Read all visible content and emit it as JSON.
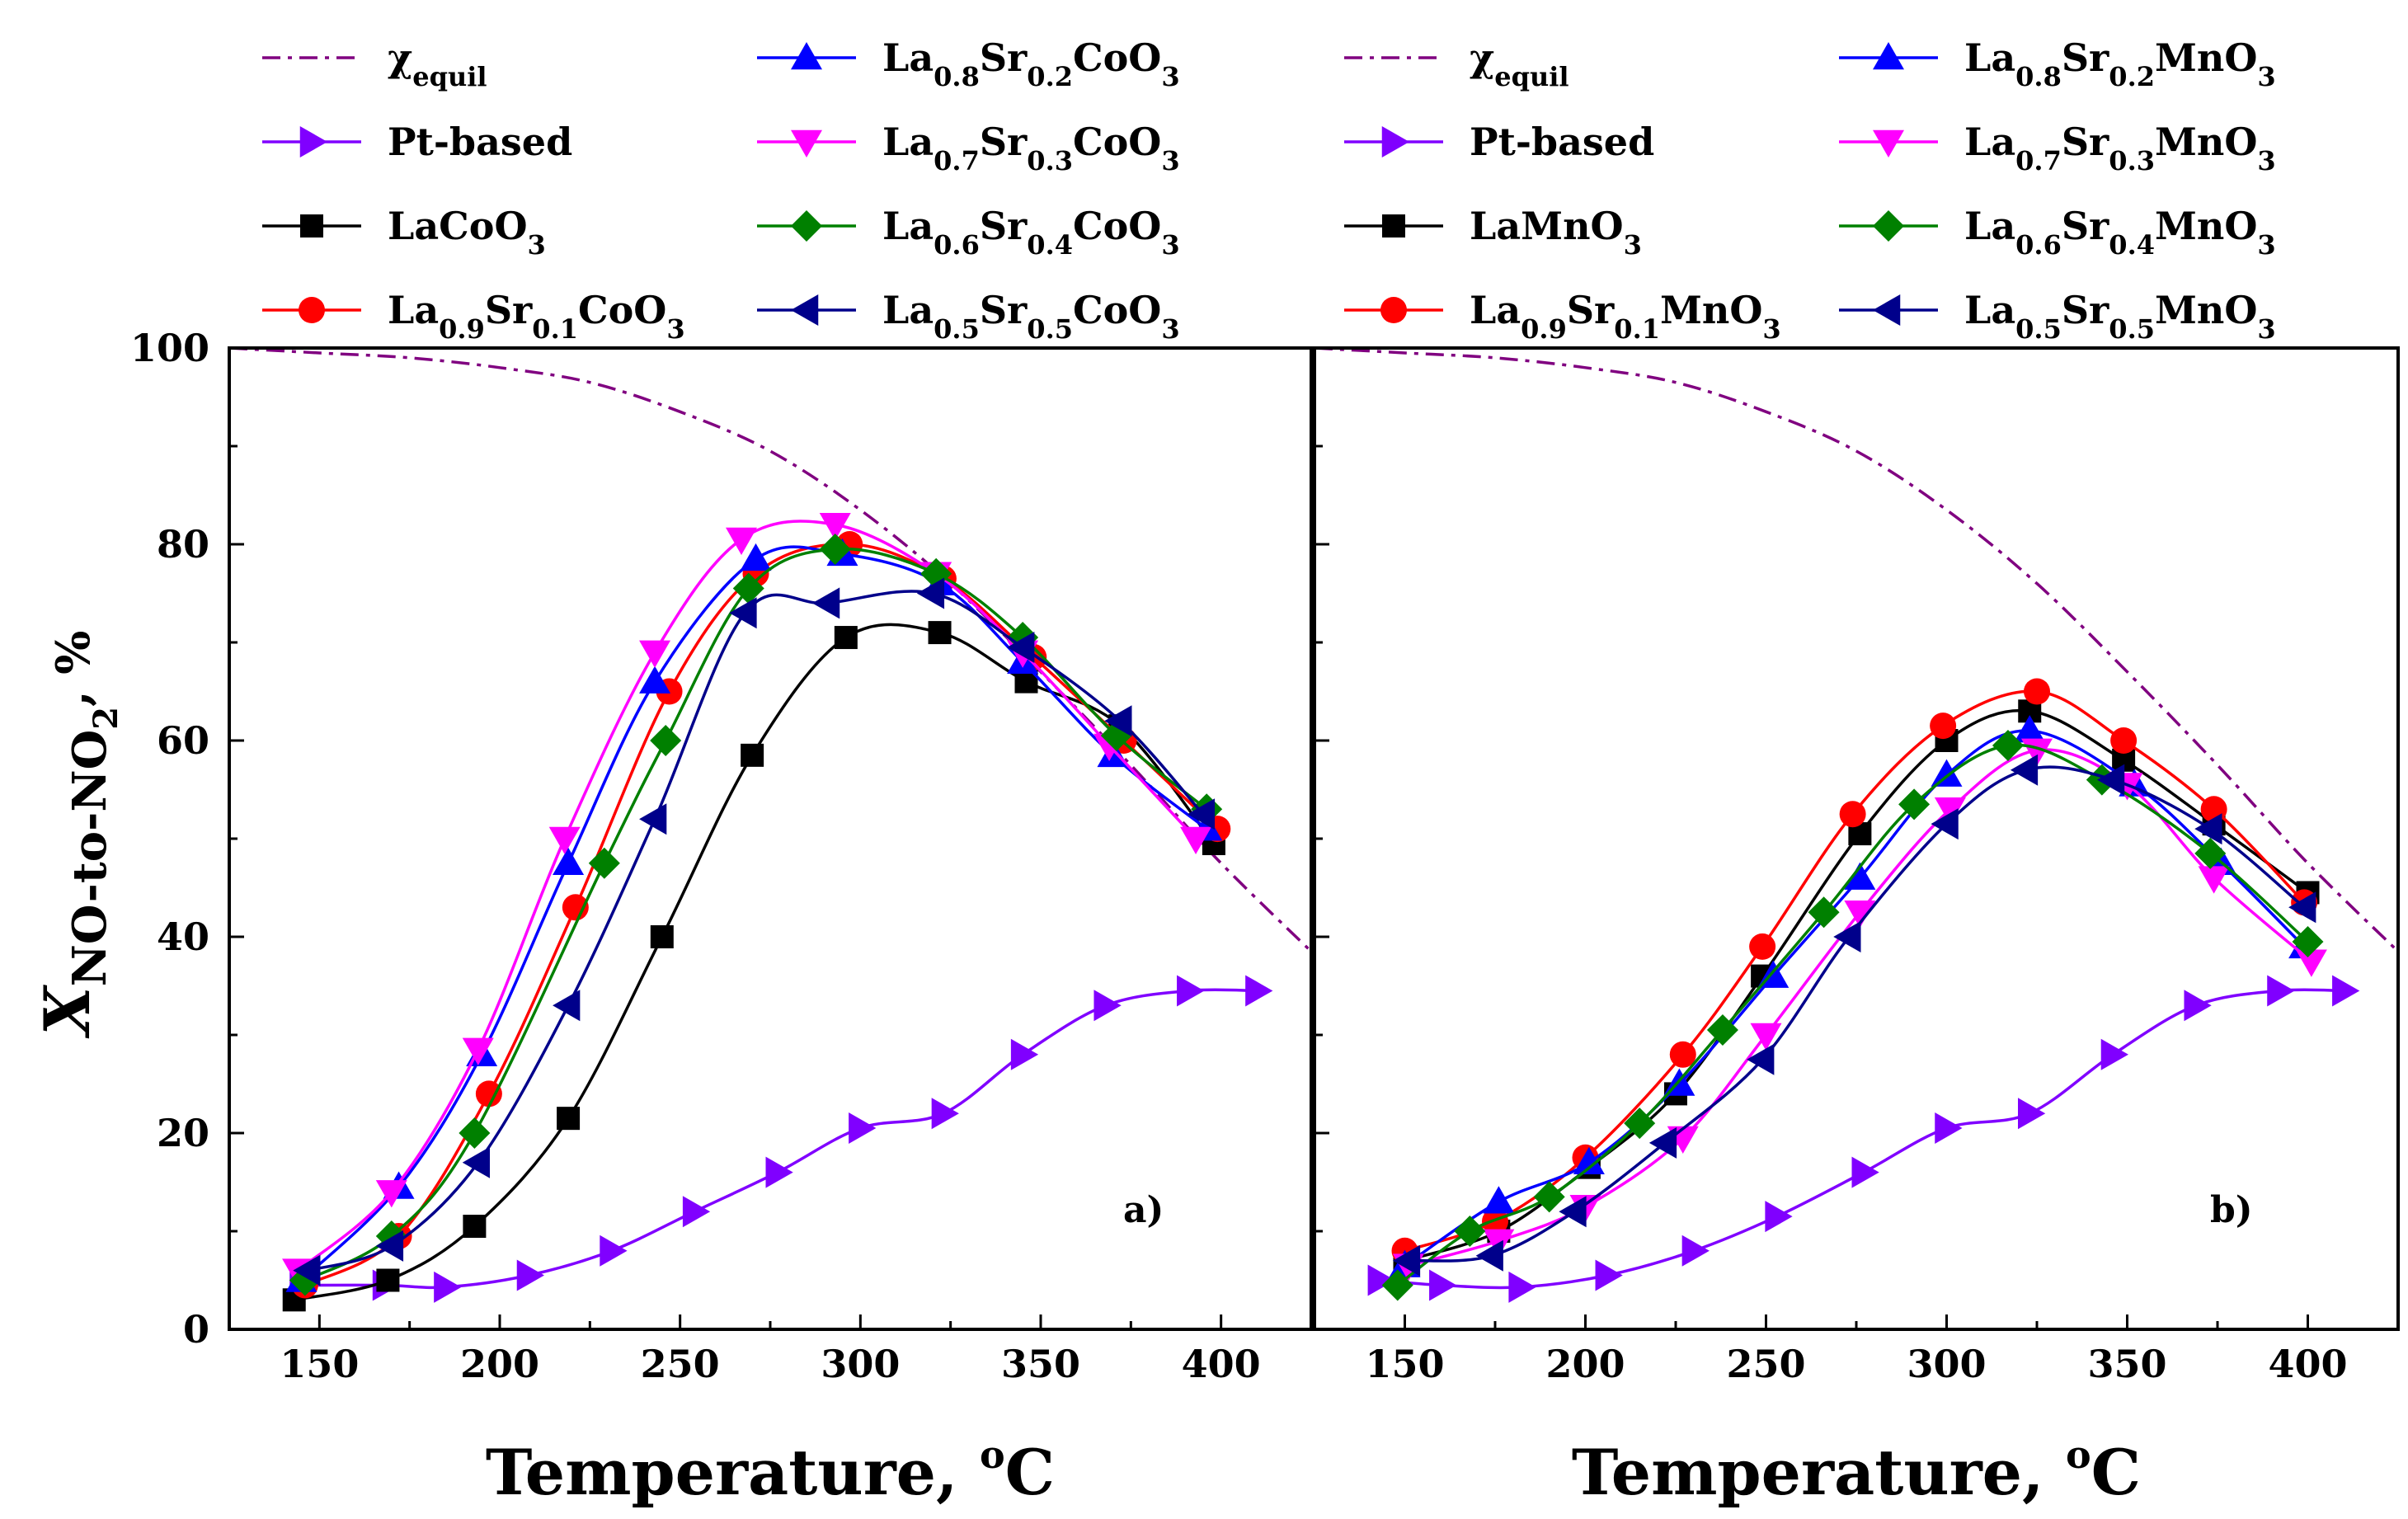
{
  "chart_data": [
    {
      "type": "scatter",
      "panel_label": "a)",
      "xlabel": "Temperature, °C",
      "ylabel": "X NO-to-NO2, %",
      "xticks": [
        150,
        200,
        250,
        300,
        350,
        400
      ],
      "yticks": [
        0,
        20,
        40,
        60,
        80,
        100
      ],
      "xlim": [
        125,
        425
      ],
      "ylim": [
        0,
        100
      ],
      "equilibrium": {
        "name": "X_equil",
        "color": "#800080",
        "x": [
          125,
          150,
          175,
          200,
          225,
          250,
          275,
          300,
          325,
          350,
          375,
          400,
          425
        ],
        "y": [
          100,
          99.5,
          99,
          98,
          96.5,
          93.5,
          89.5,
          83.5,
          76,
          67,
          57.5,
          47.5,
          38.5
        ]
      },
      "series": [
        {
          "name": "Pt-based",
          "color": "#8000FF",
          "marker": "tri-right",
          "x": [
            145,
            168,
            185,
            208,
            231,
            254,
            277,
            300,
            323,
            345,
            368,
            391,
            410
          ],
          "y": [
            4.5,
            4.5,
            4.3,
            5.5,
            8,
            12,
            16,
            20.5,
            22,
            28,
            33,
            34.5,
            34.5
          ]
        },
        {
          "name": "LaCoO3",
          "color": "#000000",
          "marker": "square",
          "x": [
            143,
            169,
            193,
            219,
            245,
            270,
            296,
            322,
            346,
            372,
            398
          ],
          "y": [
            3,
            5,
            10.5,
            21.5,
            40,
            58.5,
            70.5,
            71,
            66,
            61.5,
            49.5
          ]
        },
        {
          "name": "La0.9Sr0.1CoO3",
          "color": "#FF0000",
          "marker": "circle",
          "x": [
            146,
            172,
            197,
            221,
            247,
            271,
            297,
            323,
            348,
            373,
            399
          ],
          "y": [
            4.5,
            9.5,
            24,
            43,
            65,
            77,
            80,
            76.5,
            68.5,
            60,
            51
          ]
        },
        {
          "name": "La0.8Sr0.2CoO3",
          "color": "#0000FF",
          "marker": "tri-up",
          "x": [
            145,
            172,
            195,
            219,
            243,
            271,
            295,
            322,
            345,
            370,
            396
          ],
          "y": [
            5,
            14.5,
            28,
            47.5,
            66,
            78.5,
            79,
            76,
            68,
            58.5,
            51
          ]
        },
        {
          "name": "La0.7Sr0.3CoO3",
          "color": "#FF00FF",
          "marker": "tri-down",
          "x": [
            144,
            170,
            194,
            218,
            243,
            267,
            293,
            321,
            345,
            369,
            393
          ],
          "y": [
            6,
            14,
            28.5,
            50,
            69,
            80.5,
            82,
            77,
            69,
            59.5,
            50
          ]
        },
        {
          "name": "La0.6Sr0.4CoO3",
          "color": "#008000",
          "marker": "diamond",
          "x": [
            146,
            170,
            193,
            229,
            246,
            269,
            293,
            321,
            345,
            371,
            396
          ],
          "y": [
            5,
            9.5,
            20,
            47.5,
            60,
            75.5,
            79.5,
            77,
            70.5,
            60.5,
            53
          ]
        },
        {
          "name": "La0.5Sr0.5CoO3",
          "color": "#00008B",
          "marker": "tri-left",
          "x": [
            147,
            170,
            194,
            219,
            243,
            268,
            291,
            320,
            345,
            372,
            395
          ],
          "y": [
            6,
            8.5,
            17,
            33,
            52,
            73,
            74,
            75,
            69.5,
            62,
            52.5
          ]
        }
      ]
    },
    {
      "type": "scatter",
      "panel_label": "b)",
      "xlabel": "Temperature, °C",
      "ylabel": "",
      "xticks": [
        150,
        200,
        250,
        300,
        350,
        400
      ],
      "yticks": [
        0,
        20,
        40,
        60,
        80,
        100
      ],
      "xlim": [
        125,
        425
      ],
      "ylim": [
        0,
        100
      ],
      "equilibrium": {
        "name": "X_equil",
        "color": "#800080",
        "x": [
          125,
          150,
          175,
          200,
          225,
          250,
          275,
          300,
          325,
          350,
          375,
          400,
          425
        ],
        "y": [
          100,
          99.5,
          99,
          98,
          96.5,
          93.5,
          89.5,
          83.5,
          76,
          67,
          57.5,
          47.5,
          38.5
        ]
      },
      "series": [
        {
          "name": "Pt-based",
          "color": "#8000FF",
          "marker": "tri-right",
          "x": [
            143,
            160,
            182,
            206,
            230,
            253,
            277,
            300,
            323,
            346,
            369,
            392,
            410
          ],
          "y": [
            5,
            4.5,
            4.3,
            5.5,
            8,
            11.5,
            16,
            20.5,
            22,
            28,
            33,
            34.5,
            34.5
          ]
        },
        {
          "name": "LaMnO3",
          "color": "#000000",
          "marker": "square",
          "x": [
            150,
            176,
            201,
            225,
            249,
            276,
            300,
            323,
            349,
            374,
            400
          ],
          "y": [
            7,
            10,
            16.5,
            24,
            36,
            50.5,
            60,
            63,
            58,
            51.5,
            44.5
          ]
        },
        {
          "name": "La0.9Sr0.1MnO3",
          "color": "#FF0000",
          "marker": "circle",
          "x": [
            150,
            175,
            200,
            227,
            249,
            274,
            299,
            325,
            349,
            374,
            399
          ],
          "y": [
            8,
            11,
            17.5,
            28,
            39,
            52.5,
            61.5,
            65,
            60,
            53,
            43.5
          ]
        },
        {
          "name": "La0.8Sr0.2MnO3",
          "color": "#0000FF",
          "marker": "tri-up",
          "x": [
            150,
            176,
            201,
            226,
            252,
            276,
            300,
            323,
            352,
            376,
            399
          ],
          "y": [
            6.5,
            13,
            17,
            25,
            36,
            46,
            56.5,
            61,
            55.5,
            47.5,
            39
          ]
        },
        {
          "name": "La0.7Sr0.3MnO3",
          "color": "#FF00FF",
          "marker": "tri-down",
          "x": [
            151,
            176,
            200,
            227,
            250,
            276,
            301,
            325,
            350,
            374,
            401
          ],
          "y": [
            6.5,
            9,
            12.5,
            19.5,
            30,
            42.5,
            53,
            59,
            55.5,
            46,
            37.5
          ]
        },
        {
          "name": "La0.6Sr0.4MnO3",
          "color": "#008000",
          "marker": "diamond",
          "x": [
            148,
            168,
            190,
            215,
            238,
            266,
            291,
            317,
            343,
            373,
            400
          ],
          "y": [
            4.5,
            10,
            13.5,
            21,
            30.5,
            42.5,
            53.5,
            59.5,
            56,
            48.5,
            39.5
          ]
        },
        {
          "name": "La0.5Sr0.5MnO3",
          "color": "#00008B",
          "marker": "tri-left",
          "x": [
            151,
            174,
            197,
            222,
            249,
            273,
            300,
            322,
            346,
            373,
            399
          ],
          "y": [
            7,
            7.5,
            12,
            19,
            27.5,
            40,
            51.5,
            57,
            56,
            51,
            43
          ]
        }
      ]
    }
  ],
  "legends": [
    [
      {
        "name": "χ",
        "sub": "equil",
        "rest": "",
        "color": "#800080",
        "kind": "dashdot"
      },
      {
        "name": "Pt-based",
        "sub": "",
        "rest": "",
        "color": "#8000FF",
        "kind": "tri-right"
      },
      {
        "name": "LaCoO",
        "sub": "3",
        "rest": "",
        "color": "#000000",
        "kind": "square"
      },
      {
        "name": "La",
        "sub": "0.9",
        "rest": "Sr|0.1|CoO|3",
        "color": "#FF0000",
        "kind": "circle"
      },
      {
        "name": "La",
        "sub": "0.8",
        "rest": "Sr|0.2|CoO|3",
        "color": "#0000FF",
        "kind": "tri-up"
      },
      {
        "name": "La",
        "sub": "0.7",
        "rest": "Sr|0.3|CoO|3",
        "color": "#FF00FF",
        "kind": "tri-down"
      },
      {
        "name": "La",
        "sub": "0.6",
        "rest": "Sr|0.4|CoO|3",
        "color": "#008000",
        "kind": "diamond"
      },
      {
        "name": "La",
        "sub": "0.5",
        "rest": "Sr|0.5|CoO|3",
        "color": "#00008B",
        "kind": "tri-left"
      }
    ],
    [
      {
        "name": "χ",
        "sub": "equil",
        "rest": "",
        "color": "#800080",
        "kind": "dashdot"
      },
      {
        "name": "Pt-based",
        "sub": "",
        "rest": "",
        "color": "#8000FF",
        "kind": "tri-right"
      },
      {
        "name": "LaMnO",
        "sub": "3",
        "rest": "",
        "color": "#000000",
        "kind": "square"
      },
      {
        "name": "La",
        "sub": "0.9",
        "rest": "Sr|0.1|MnO|3",
        "color": "#FF0000",
        "kind": "circle"
      },
      {
        "name": "La",
        "sub": "0.8",
        "rest": "Sr|0.2|MnO|3",
        "color": "#0000FF",
        "kind": "tri-up"
      },
      {
        "name": "La",
        "sub": "0.7",
        "rest": "Sr|0.3|MnO|3",
        "color": "#FF00FF",
        "kind": "tri-down"
      },
      {
        "name": "La",
        "sub": "0.6",
        "rest": "Sr|0.4|MnO|3",
        "color": "#008000",
        "kind": "diamond"
      },
      {
        "name": "La",
        "sub": "0.5",
        "rest": "Sr|0.5|MnO|3",
        "color": "#00008B",
        "kind": "tri-left"
      }
    ]
  ],
  "y_axis_title": {
    "main": "X",
    "sub": "NO-to-NO",
    "sub2": "2",
    "after": ", %"
  },
  "x_axis_title": {
    "main": "Temperature, ",
    "sup": "o",
    "after": "C"
  }
}
